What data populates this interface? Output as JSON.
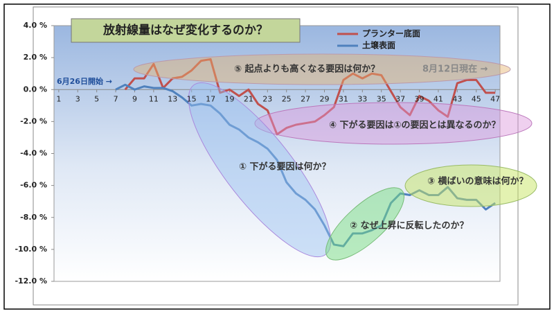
{
  "chart_data": {
    "type": "line",
    "title": "放射線量はなぜ変化するのか？",
    "x": [
      1,
      2,
      3,
      4,
      5,
      6,
      7,
      8,
      9,
      10,
      11,
      12,
      13,
      14,
      15,
      16,
      17,
      18,
      19,
      20,
      21,
      22,
      23,
      24,
      25,
      26,
      27,
      28,
      29,
      30,
      31,
      32,
      33,
      34,
      35,
      36,
      37,
      38,
      39,
      40,
      41,
      42,
      43,
      44,
      45,
      46,
      47
    ],
    "xlim": [
      0.5,
      47.5
    ],
    "xticks": [
      1,
      3,
      5,
      7,
      9,
      11,
      13,
      15,
      17,
      19,
      21,
      23,
      25,
      27,
      29,
      31,
      33,
      35,
      37,
      39,
      41,
      43,
      45,
      47
    ],
    "ylim": [
      -12,
      4
    ],
    "yticks": [
      {
        "value": 4,
        "label": "4.0 %"
      },
      {
        "value": 2,
        "label": "2.0 %"
      },
      {
        "value": 0,
        "label": "0.0 %"
      },
      {
        "value": -2,
        "label": "-2.0 %"
      },
      {
        "value": -4,
        "label": "-4.0 %"
      },
      {
        "value": -6,
        "label": "-6.0 %"
      },
      {
        "value": -8,
        "label": "-8.0 %"
      },
      {
        "value": -10,
        "label": "-10.0 %"
      },
      {
        "value": -12,
        "label": "-12.0 %"
      }
    ],
    "grid": false,
    "legend": "upper right",
    "series": [
      {
        "name": "プランター底面",
        "color": "#c0504d",
        "values": [
          null,
          null,
          null,
          null,
          null,
          null,
          null,
          0.0,
          0.7,
          0.7,
          1.6,
          0.1,
          0.7,
          0.8,
          1.2,
          1.8,
          1.9,
          -0.2,
          0.0,
          -0.4,
          0.0,
          -0.9,
          -1.3,
          -2.8,
          -2.4,
          -2.2,
          -2.1,
          -2.0,
          -1.6,
          -1.1,
          0.6,
          1.0,
          0.7,
          1.0,
          0.9,
          -0.1,
          -1.1,
          -1.6,
          -0.4,
          -0.7,
          -1.3,
          -1.7,
          0.4,
          0.6,
          0.6,
          -0.2,
          -0.2
        ]
      },
      {
        "name": "土壌表面",
        "color": "#4f81bd",
        "values": [
          null,
          null,
          null,
          null,
          null,
          null,
          0.0,
          0.3,
          0.0,
          0.2,
          0.1,
          0.1,
          -0.1,
          -0.5,
          -1.0,
          -0.9,
          -1.0,
          -1.5,
          -2.2,
          -2.5,
          -3.0,
          -3.3,
          -3.7,
          -4.4,
          -5.8,
          -6.5,
          -6.9,
          -7.5,
          -8.5,
          -9.7,
          -9.8,
          -9.0,
          -9.0,
          -8.8,
          -8.5,
          -7.1,
          -6.5,
          -6.6,
          -6.3,
          -6.6,
          -6.6,
          -6.1,
          -6.8,
          -6.9,
          -6.9,
          -7.5,
          -7.1
        ]
      }
    ],
    "annotations": [
      "6月26日開始 →",
      "8月12日現在 →",
      "⑤ 起点よりも高くなる要因は何か？",
      "④ 下がる要因は①の要因とは異なるのか？",
      "① 下がる要因は何か？",
      "② なぜ上昇に反転したのか？",
      "③ 横ばいの意味は何か？"
    ]
  }
}
